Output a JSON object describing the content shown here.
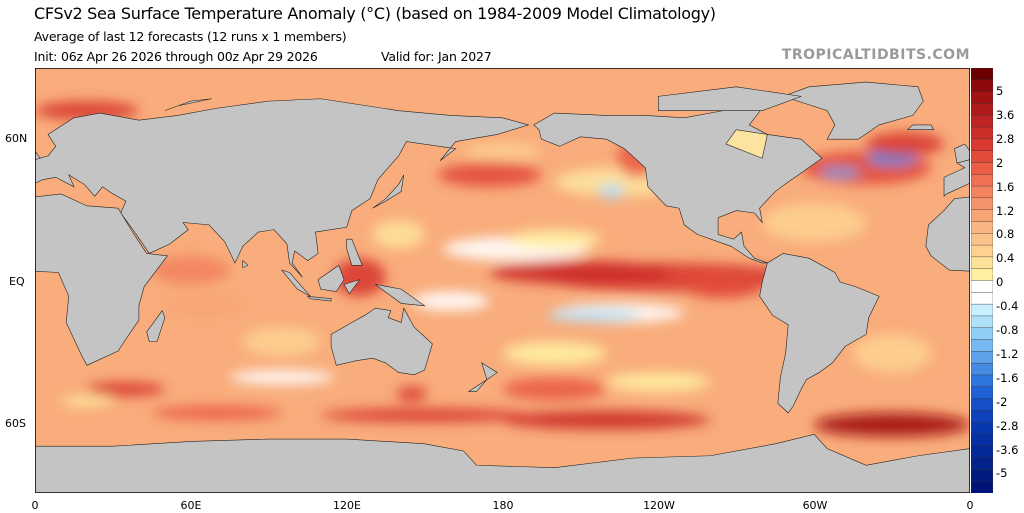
{
  "header": {
    "title": "CFSv2 Sea Surface Temperature Anomaly (°C) (based on 1984-2009 Model Climatology)",
    "subtitle": "Average of last 12 forecasts (12 runs x 1 members)",
    "init": "Init: 06z Apr 26 2026 through 00z Apr 29 2026",
    "valid": "Valid for: Jan 2027",
    "brand": "TROPICALTIDBITS.COM"
  },
  "axes": {
    "lat_labels": [
      "60N",
      "EQ",
      "60S"
    ],
    "lon_labels": [
      "0",
      "60E",
      "120E",
      "180",
      "120W",
      "60W",
      "0"
    ]
  },
  "colorbar": {
    "labels": [
      "5",
      "3.6",
      "2.8",
      "2",
      "1.6",
      "1.2",
      "0.8",
      "0.4",
      "0",
      "-0.4",
      "-0.8",
      "-1.2",
      "-1.6",
      "-2",
      "-2.8",
      "-3.6",
      "-5"
    ],
    "colors": [
      "#6b0000",
      "#8c0a0a",
      "#a31212",
      "#b01a1a",
      "#bf2424",
      "#cc2e2a",
      "#d83a30",
      "#e24a3a",
      "#ea5e46",
      "#ef7052",
      "#f2835e",
      "#f5946a",
      "#f7a576",
      "#f9b582",
      "#fbc38c",
      "#fdd290",
      "#fee199",
      "#fff0a0",
      "#ffffff",
      "#ffffff",
      "#c8f0ff",
      "#aee0fa",
      "#92cdf5",
      "#78b8f0",
      "#5ea2ea",
      "#468ce4",
      "#2f76dc",
      "#1f62d4",
      "#1550c8",
      "#0d42bc",
      "#0838b0",
      "#0530a4",
      "#032898",
      "#02228c",
      "#011c80",
      "#001478"
    ],
    "land_color": "#c4c4c4"
  }
}
